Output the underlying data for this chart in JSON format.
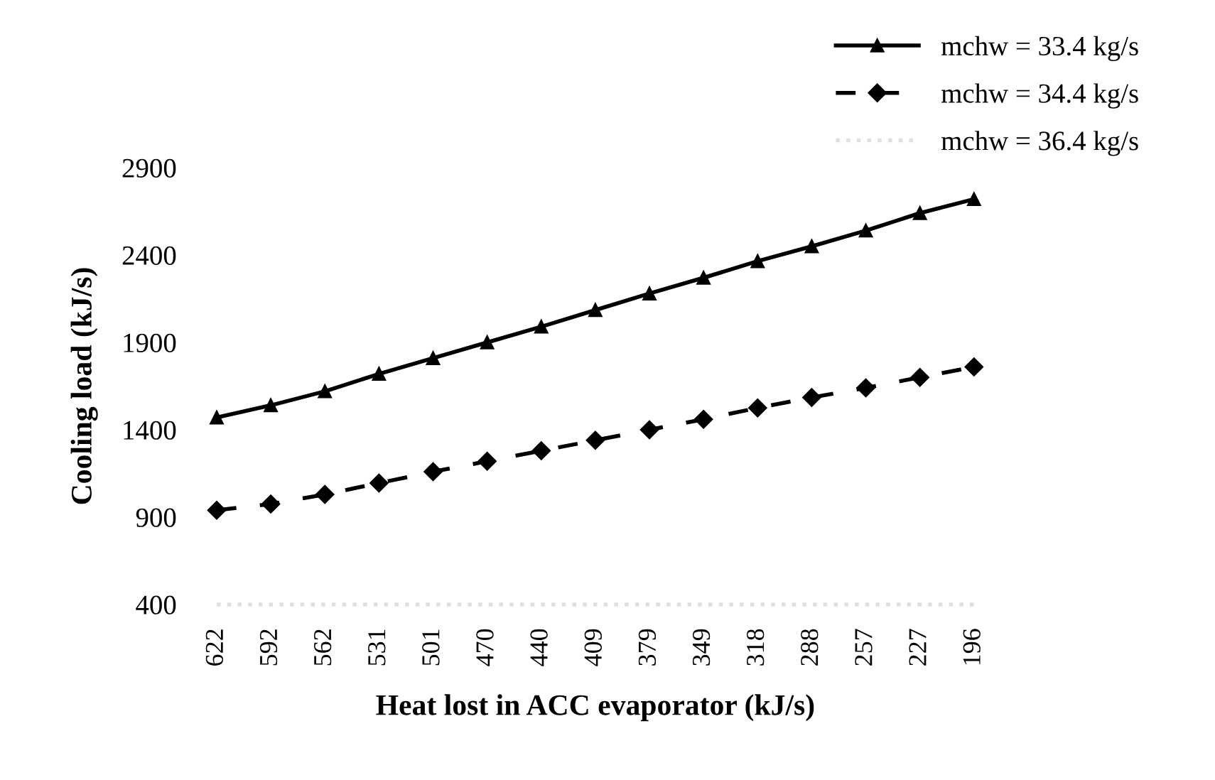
{
  "chart_data": {
    "type": "line",
    "xlabel": "Heat lost in ACC evaporator (kJ/s)",
    "ylabel": "Cooling load (kJ/s)",
    "categories": [
      "622",
      "592",
      "562",
      "531",
      "501",
      "470",
      "440",
      "409",
      "379",
      "349",
      "318",
      "288",
      "257",
      "227",
      "196"
    ],
    "series": [
      {
        "name": "mchw = 33.4 kg/s",
        "color": "#000000",
        "marker": "triangle",
        "line_style": "solid",
        "values": [
          1470,
          1540,
          1620,
          1720,
          1810,
          1900,
          1990,
          2085,
          2180,
          2270,
          2365,
          2450,
          2540,
          2640,
          2720
        ]
      },
      {
        "name": "mchw = 34.4 kg/s",
        "color": "#000000",
        "marker": "diamond",
        "line_style": "dashed",
        "values": [
          940,
          975,
          1030,
          1095,
          1160,
          1220,
          1280,
          1340,
          1400,
          1460,
          1525,
          1585,
          1640,
          1700,
          1760
        ]
      },
      {
        "name": "mchw = 36.4 kg/s",
        "color": "#e0e0e0",
        "marker": "none",
        "line_style": "dotted",
        "values": [
          400,
          400,
          400,
          400,
          400,
          400,
          400,
          400,
          400,
          400,
          400,
          400,
          400,
          400,
          400
        ]
      }
    ],
    "ylim": [
      400,
      2900
    ],
    "yticks": [
      400,
      900,
      1400,
      1900,
      2400,
      2900
    ],
    "grid": false,
    "legend": "top right"
  }
}
